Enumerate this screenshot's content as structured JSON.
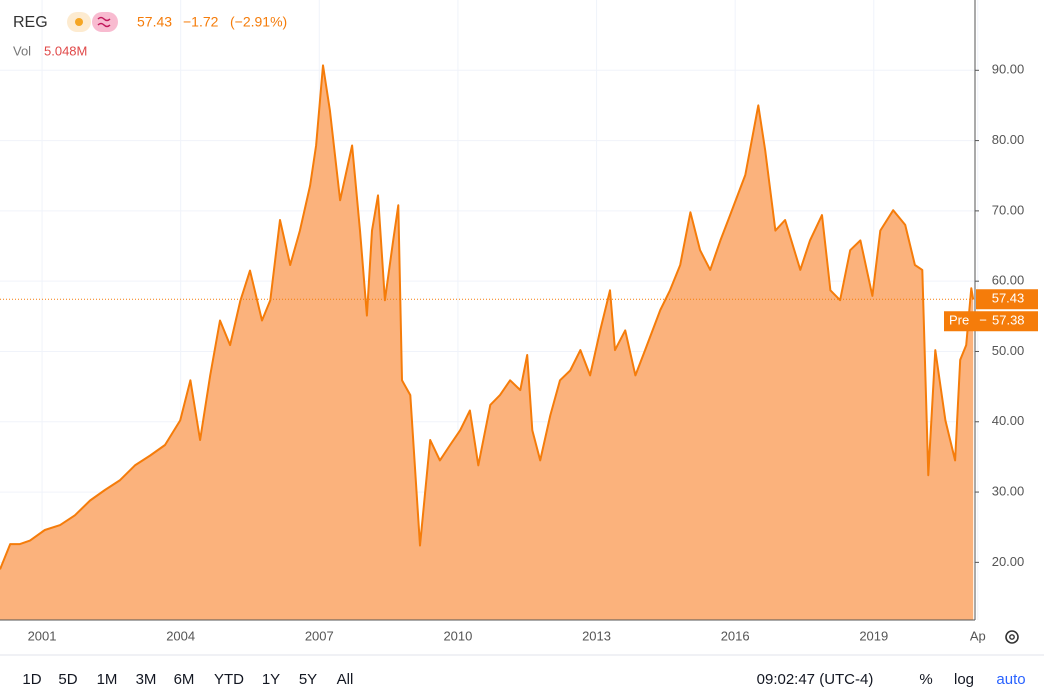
{
  "header": {
    "symbol": "REG",
    "price": "57.43",
    "change": "−1.72",
    "change_pct": "(−2.91%)",
    "vol_label": "Vol",
    "vol_value": "5.048M"
  },
  "chart_data": {
    "type": "area",
    "color": "#f57c0a",
    "fill_color": "#fbb27c",
    "x": [
      2000.09,
      2000.31,
      2000.52,
      2000.74,
      2001.06,
      2001.39,
      2001.71,
      2002.04,
      2002.36,
      2002.69,
      2003.01,
      2003.34,
      2003.66,
      2003.99,
      2004.21,
      2004.42,
      2004.64,
      2004.85,
      2005.07,
      2005.29,
      2005.5,
      2005.76,
      2005.94,
      2006.15,
      2006.37,
      2006.58,
      2006.8,
      2006.93,
      2007.08,
      2007.23,
      2007.45,
      2007.71,
      2007.88,
      2008.03,
      2008.14,
      2008.27,
      2008.42,
      2008.6,
      2008.71,
      2008.79,
      2008.97,
      2009.18,
      2009.4,
      2009.61,
      2009.83,
      2010.05,
      2010.26,
      2010.44,
      2010.7,
      2010.91,
      2011.13,
      2011.35,
      2011.5,
      2011.61,
      2011.78,
      2012.0,
      2012.21,
      2012.43,
      2012.65,
      2012.86,
      2013.08,
      2013.29,
      2013.4,
      2013.62,
      2013.84,
      2014.05,
      2014.38,
      2014.59,
      2014.81,
      2015.03,
      2015.24,
      2015.46,
      2015.68,
      2015.89,
      2016.22,
      2016.5,
      2016.65,
      2016.87,
      2017.08,
      2017.41,
      2017.62,
      2017.88,
      2018.06,
      2018.27,
      2018.49,
      2018.71,
      2018.97,
      2019.14,
      2019.42,
      2019.68,
      2019.89,
      2020.05,
      2020.18,
      2020.33,
      2020.55,
      2020.76,
      2020.87,
      2021.0,
      2021.11,
      2021.15
    ],
    "values": [
      19.0,
      22.6,
      22.6,
      23.1,
      24.6,
      25.3,
      26.7,
      28.8,
      30.3,
      31.7,
      33.8,
      35.2,
      36.7,
      40.2,
      45.9,
      37.4,
      46.6,
      54.4,
      50.9,
      57.2,
      61.5,
      54.4,
      57.3,
      68.7,
      62.3,
      67.2,
      73.6,
      79.3,
      90.7,
      84.3,
      71.5,
      79.3,
      67.2,
      55.1,
      67.2,
      72.2,
      57.3,
      65.8,
      70.8,
      45.9,
      43.8,
      22.4,
      37.4,
      34.5,
      36.7,
      38.8,
      41.6,
      33.8,
      42.4,
      43.8,
      45.9,
      44.5,
      49.5,
      38.8,
      34.5,
      40.9,
      45.9,
      47.3,
      50.2,
      46.6,
      53.0,
      58.7,
      50.2,
      53.0,
      46.6,
      50.2,
      55.9,
      58.7,
      62.3,
      69.8,
      64.4,
      61.6,
      65.8,
      69.4,
      75.1,
      85.0,
      78.6,
      67.2,
      68.7,
      61.6,
      65.8,
      69.4,
      58.7,
      57.3,
      64.4,
      65.8,
      57.9,
      67.2,
      70.1,
      68.0,
      62.3,
      61.6,
      32.4,
      50.2,
      40.2,
      34.5,
      48.8,
      50.9,
      59.0,
      57.4
    ],
    "xlim": [
      2000.09,
      2021.19
    ],
    "ylim": [
      11.8,
      100
    ],
    "xticks": [
      2001,
      2004,
      2007,
      2010,
      2013,
      2016,
      2019,
      {
        "value": 2021.25,
        "label": "Ap"
      }
    ],
    "yticks": [
      {
        "value": 20,
        "label": "20.00"
      },
      {
        "value": 30,
        "label": "30.00"
      },
      {
        "value": 40,
        "label": "40.00"
      },
      {
        "value": 50,
        "label": "50.00"
      },
      {
        "value": 60,
        "label": "60.00"
      },
      {
        "value": 70,
        "label": "70.00"
      },
      {
        "value": 80,
        "label": "80.00"
      },
      {
        "value": 90,
        "label": "90.00"
      }
    ],
    "last_price": 57.43,
    "last_price_label": "57.43",
    "pre_label": "Pre",
    "pre_price": 57.38,
    "pre_price_label": "57.38"
  },
  "toolbar": {
    "ranges": [
      "1D",
      "5D",
      "1M",
      "3M",
      "6M",
      "YTD",
      "1Y",
      "5Y",
      "All"
    ],
    "time": "09:02:47 (UTC-4)",
    "percent": "%",
    "log": "log",
    "auto": "auto"
  }
}
